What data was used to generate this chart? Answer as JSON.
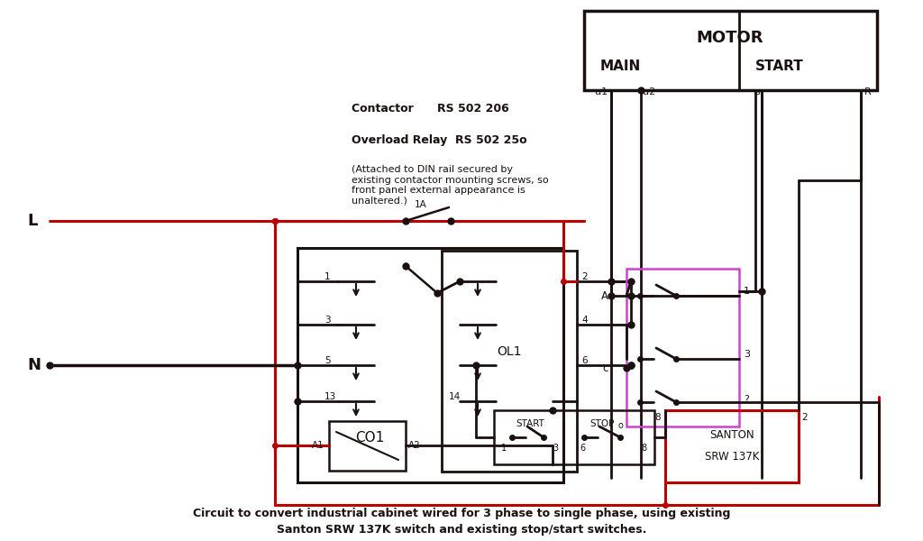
{
  "bg_color": "#ffffff",
  "title_line1": "Circuit to convert industrial cabinet wired for 3 phase to single phase, using existing",
  "title_line2": "Santon SRW 137K switch and existing stop/start switches.",
  "contactor_label": "Contactor      RS 502 206",
  "overload_label": "Overload Relay  RS 502 25o",
  "note_text": "(Attached to DIN rail secured by\nexisting contactor mounting screws, so\nfront panel external appearance is\nunaltered.)",
  "black": "#1a1010",
  "red": "#bb0000",
  "purple": "#cc44cc"
}
